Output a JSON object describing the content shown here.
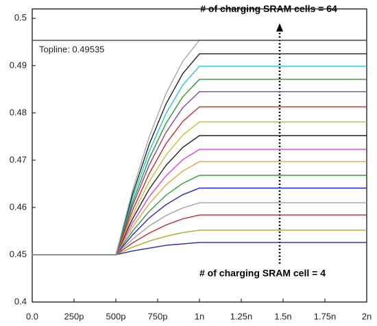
{
  "chart_data": {
    "type": "line",
    "annotations": [
      "# of charging SRAM cells = 64",
      "# of charging SRAM cell = 4"
    ],
    "topline": {
      "label": "Topline: 0.49535",
      "value": 0.49535,
      "color": "#333333"
    },
    "x": [
      0,
      5e-10,
      6e-10,
      7e-10,
      8e-10,
      9e-10,
      1e-09,
      2e-09
    ],
    "series": [
      {
        "color": "#2222cc",
        "values": [
          0.45,
          0.45,
          0.4508,
          0.4514,
          0.452,
          0.4523,
          0.4526,
          0.4526
        ]
      },
      {
        "color": "#b0a820",
        "values": [
          0.45,
          0.45,
          0.4516,
          0.4529,
          0.4539,
          0.4547,
          0.4552,
          0.4552
        ]
      },
      {
        "color": "#d02020",
        "values": [
          0.45,
          0.45,
          0.4525,
          0.4546,
          0.4563,
          0.4576,
          0.4584,
          0.4584
        ]
      },
      {
        "color": "#a0a0a0",
        "values": [
          0.45,
          0.45,
          0.4533,
          0.4561,
          0.4583,
          0.4599,
          0.461,
          0.461
        ]
      },
      {
        "color": "#2020d8",
        "values": [
          0.45,
          0.45,
          0.4542,
          0.4578,
          0.4606,
          0.4627,
          0.4641,
          0.4641
        ]
      },
      {
        "color": "#30a030",
        "values": [
          0.45,
          0.45,
          0.455,
          0.4592,
          0.4626,
          0.4651,
          0.4668,
          0.4668
        ]
      },
      {
        "color": "#f0a040",
        "values": [
          0.45,
          0.45,
          0.4559,
          0.4608,
          0.4648,
          0.4677,
          0.4697,
          0.4697
        ]
      },
      {
        "color": "#e040e0",
        "values": [
          0.45,
          0.45,
          0.4567,
          0.4623,
          0.4667,
          0.4701,
          0.4723,
          0.4723
        ]
      },
      {
        "color": "#222222",
        "values": [
          0.45,
          0.45,
          0.4576,
          0.4639,
          0.4689,
          0.4727,
          0.4752,
          0.4752
        ]
      },
      {
        "color": "#c8c030",
        "values": [
          0.45,
          0.45,
          0.4584,
          0.4655,
          0.4711,
          0.4753,
          0.4781,
          0.4781
        ]
      },
      {
        "color": "#e02020",
        "values": [
          0.45,
          0.45,
          0.4594,
          0.4672,
          0.4735,
          0.4782,
          0.4813,
          0.4813
        ]
      },
      {
        "color": "#8040a0",
        "values": [
          0.45,
          0.45,
          0.4604,
          0.469,
          0.4759,
          0.4811,
          0.4845,
          0.4845
        ]
      },
      {
        "color": "#20a020",
        "values": [
          0.45,
          0.45,
          0.4611,
          0.4704,
          0.4778,
          0.4834,
          0.4871,
          0.4871
        ]
      },
      {
        "color": "#20c8d0",
        "values": [
          0.45,
          0.45,
          0.462,
          0.4719,
          0.4799,
          0.4859,
          0.4899,
          0.4899
        ]
      },
      {
        "color": "#202020",
        "values": [
          0.45,
          0.45,
          0.4628,
          0.4734,
          0.4819,
          0.4883,
          0.4925,
          0.4925
        ]
      },
      {
        "color": "#a8a8a8",
        "values": [
          0.45,
          0.45,
          0.4636,
          0.475,
          0.4841,
          0.4909,
          0.4954,
          0.4954
        ]
      }
    ],
    "xlim": [
      0,
      2e-09
    ],
    "xticks": [
      {
        "value": 0,
        "label": "0.0"
      },
      {
        "value": 2.5e-10,
        "label": "250p"
      },
      {
        "value": 5e-10,
        "label": "500p"
      },
      {
        "value": 7.5e-10,
        "label": "750p"
      },
      {
        "value": 1e-09,
        "label": "1n"
      },
      {
        "value": 1.25e-09,
        "label": "1.25n"
      },
      {
        "value": 1.5e-09,
        "label": "1.5n"
      },
      {
        "value": 1.75e-09,
        "label": "1.75n"
      },
      {
        "value": 2e-09,
        "label": "2n"
      }
    ],
    "ylim": [
      0.44,
      0.502
    ],
    "yticks": [
      {
        "value": 0.44,
        "label": "0.4"
      },
      0.45,
      0.46,
      0.47,
      0.48,
      0.49,
      0.5
    ]
  }
}
